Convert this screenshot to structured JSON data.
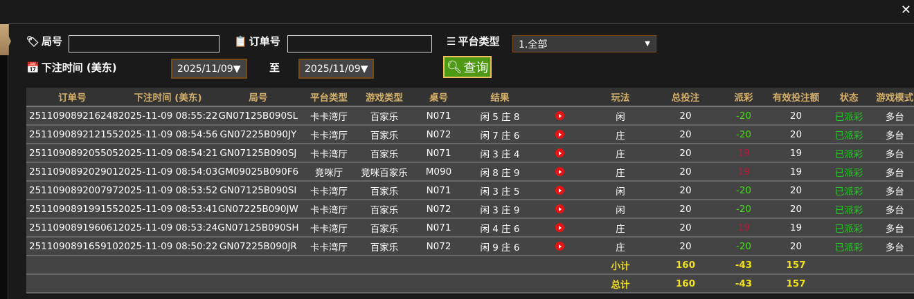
{
  "filters": {
    "round_label": "局号",
    "round_value": "",
    "order_label": "订单号",
    "order_value": "",
    "platform_label": "平台类型",
    "platform_value": "1.全部",
    "time_label": "下注时间 (美东)",
    "date_from": "2025/11/09▼",
    "to_label": "至",
    "date_to": "2025/11/09▼",
    "query_label": "查询"
  },
  "table": {
    "headers": [
      "订单号",
      "下注时间 (美东)",
      "局号",
      "平台类型",
      "游戏类型",
      "桌号",
      "结果",
      "",
      "玩法",
      "总投注",
      "派彩",
      "有效投注额",
      "状态",
      "游戏模式"
    ],
    "rows": [
      [
        "251109089216248",
        "2025-11-09 08:55:22",
        "GN07125B090SL",
        "卡卡湾厅",
        "百家乐",
        "N071",
        "闲 5 庄 8",
        "",
        "闲",
        "20",
        "-20",
        "20",
        "已派彩",
        "多台"
      ],
      [
        "251109089212155",
        "2025-11-09 08:54:56",
        "GN07225B090JY",
        "卡卡湾厅",
        "百家乐",
        "N072",
        "闲 7 庄 6",
        "",
        "庄",
        "20",
        "-20",
        "20",
        "已派彩",
        "多台"
      ],
      [
        "251109089205505",
        "2025-11-09 08:54:21",
        "GN07125B090SJ",
        "卡卡湾厅",
        "百家乐",
        "N071",
        "闲 3 庄 4",
        "",
        "庄",
        "20",
        "19",
        "19",
        "已派彩",
        "多台"
      ],
      [
        "251109089202901",
        "2025-11-09 08:54:03",
        "GM09025B090F6",
        "竞咪厅",
        "竞咪百家乐",
        "M090",
        "闲 8 庄 9",
        "",
        "庄",
        "20",
        "19",
        "19",
        "已派彩",
        "多台"
      ],
      [
        "251109089200797",
        "2025-11-09 08:53:52",
        "GN07125B090SI",
        "卡卡湾厅",
        "百家乐",
        "N071",
        "闲 3 庄 5",
        "",
        "闲",
        "20",
        "-20",
        "20",
        "已派彩",
        "多台"
      ],
      [
        "251109089199155",
        "2025-11-09 08:53:41",
        "GN07225B090JW",
        "卡卡湾厅",
        "百家乐",
        "N072",
        "闲 3 庄 9",
        "",
        "闲",
        "20",
        "-20",
        "20",
        "已派彩",
        "多台"
      ],
      [
        "251109089196061",
        "2025-11-09 08:53:24",
        "GN07125B090SH",
        "卡卡湾厅",
        "百家乐",
        "N071",
        "闲 4 庄 6",
        "",
        "庄",
        "20",
        "19",
        "19",
        "已派彩",
        "多台"
      ],
      [
        "251109089165910",
        "2025-11-09 08:50:22",
        "GN07225B090JR",
        "卡卡湾厅",
        "百家乐",
        "N072",
        "闲 9 庄 6",
        "",
        "庄",
        "20",
        "-20",
        "20",
        "已派彩",
        "多台"
      ]
    ],
    "subtotal": {
      "label": "小计",
      "total_bet": "160",
      "payout": "-43",
      "valid_bet": "157"
    },
    "total": {
      "label": "总计",
      "total_bet": "160",
      "payout": "-43",
      "valid_bet": "157"
    }
  },
  "colors": {
    "positive": "#44dd11",
    "negative": "#c0143c",
    "status": "#22cc22",
    "header": "#d4b06a",
    "query_button": "#4e9a14"
  }
}
